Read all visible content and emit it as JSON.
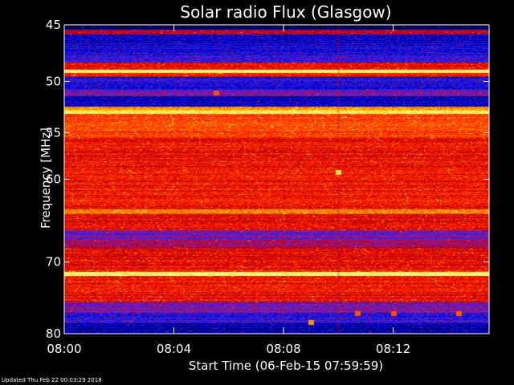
{
  "chart_data": {
    "type": "heatmap",
    "title": "Solar radio Flux (Glasgow)",
    "xlabel": "Start Time (06-Feb-15 07:59:59)",
    "ylabel": "Frequency [MHz]",
    "x_start": "08:00",
    "x_end": "08:15",
    "x_ticks": [
      "08:00",
      "08:04",
      "08:08",
      "08:12"
    ],
    "x_tick_minutes": [
      0,
      4,
      8,
      12
    ],
    "x_range_minutes": [
      0,
      15.5
    ],
    "y_ticks": [
      45,
      50,
      55,
      60,
      70,
      80
    ],
    "ylim": [
      45,
      80
    ],
    "y_scale": "log",
    "colorscale": [
      "#000040",
      "#0000c8",
      "#2a1fe0",
      "#8a1aa8",
      "#c00000",
      "#ff2000",
      "#ff6a00",
      "#ffd000",
      "#ffff9a"
    ],
    "frequency_bands": [
      {
        "from": 45.0,
        "to": 45.4,
        "level": 0.0
      },
      {
        "from": 45.4,
        "to": 45.8,
        "level": 0.45
      },
      {
        "from": 45.8,
        "to": 46.6,
        "level": 0.15
      },
      {
        "from": 46.6,
        "to": 47.6,
        "level": 0.2
      },
      {
        "from": 47.6,
        "to": 48.3,
        "level": 0.25
      },
      {
        "from": 48.3,
        "to": 48.9,
        "level": 0.6
      },
      {
        "from": 48.9,
        "to": 49.2,
        "level": 1.0
      },
      {
        "from": 49.2,
        "to": 49.6,
        "level": 0.55
      },
      {
        "from": 49.6,
        "to": 50.8,
        "level": 0.2
      },
      {
        "from": 50.8,
        "to": 51.4,
        "level": 0.35
      },
      {
        "from": 51.4,
        "to": 52.4,
        "level": 0.15
      },
      {
        "from": 52.4,
        "to": 52.8,
        "level": 0.8
      },
      {
        "from": 52.8,
        "to": 53.1,
        "level": 0.95
      },
      {
        "from": 53.1,
        "to": 55.5,
        "level": 0.68
      },
      {
        "from": 55.5,
        "to": 61.0,
        "level": 0.58
      },
      {
        "from": 61.0,
        "to": 63.5,
        "level": 0.6
      },
      {
        "from": 63.5,
        "to": 64.0,
        "level": 0.78
      },
      {
        "from": 64.0,
        "to": 66.0,
        "level": 0.55
      },
      {
        "from": 66.0,
        "to": 67.3,
        "level": 0.35
      },
      {
        "from": 67.3,
        "to": 68.3,
        "level": 0.45
      },
      {
        "from": 68.3,
        "to": 70.5,
        "level": 0.55
      },
      {
        "from": 70.5,
        "to": 71.3,
        "level": 0.6
      },
      {
        "from": 71.3,
        "to": 71.8,
        "level": 1.0
      },
      {
        "from": 71.8,
        "to": 74.0,
        "level": 0.6
      },
      {
        "from": 74.0,
        "to": 75.5,
        "level": 0.55
      },
      {
        "from": 75.5,
        "to": 77.0,
        "level": 0.35
      },
      {
        "from": 77.0,
        "to": 78.5,
        "level": 0.25
      },
      {
        "from": 78.5,
        "to": 80.0,
        "level": 0.12
      }
    ],
    "hot_spots": [
      {
        "minute": 10.0,
        "frequency": 59.2,
        "level": 0.92
      },
      {
        "minute": 5.55,
        "frequency": 51.1,
        "level": 0.7
      },
      {
        "minute": 12.0,
        "frequency": 77.1,
        "level": 0.7
      },
      {
        "minute": 14.4,
        "frequency": 77.1,
        "level": 0.72
      },
      {
        "minute": 10.7,
        "frequency": 77.1,
        "level": 0.72
      },
      {
        "minute": 9.0,
        "frequency": 78.4,
        "level": 0.8
      }
    ],
    "grid": false,
    "legend": "none"
  },
  "footer": {
    "updated": "Updated Thu Feb 22 00:03:29 2018"
  }
}
